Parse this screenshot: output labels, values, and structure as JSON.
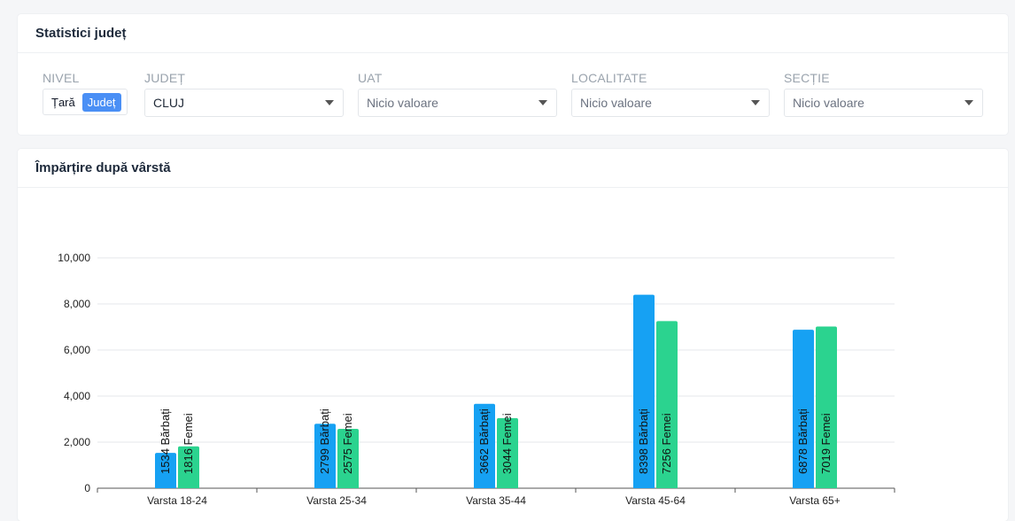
{
  "filters_card": {
    "title": "Statistici județ",
    "nivel": {
      "label": "NIVEL",
      "options": [
        "Țară",
        "Județ"
      ],
      "active_index": 1
    },
    "judet": {
      "label": "JUDEȚ",
      "value": "CLUJ"
    },
    "uat": {
      "label": "UAT",
      "placeholder": "Nicio valoare"
    },
    "localitate": {
      "label": "LOCALITATE",
      "placeholder": "Nicio valoare"
    },
    "sectie": {
      "label": "SECȚIE",
      "placeholder": "Nicio valoare"
    }
  },
  "chart_card": {
    "title": "Împărțire după vârstă"
  },
  "colors": {
    "men": "#16a1f3",
    "women": "#2bd38f",
    "accent": "#4a8ff5"
  },
  "chart_data": {
    "type": "bar",
    "categories": [
      "Varsta 18-24",
      "Varsta 25-34",
      "Varsta 35-44",
      "Varsta 45-64",
      "Varsta 65+"
    ],
    "series": [
      {
        "values": [
          1534,
          2799,
          3662,
          8398,
          6878
        ],
        "labels": [
          "1534 Bărbați",
          "2799 Bărbați",
          "3662 Bărbați",
          "8398 Bărbați",
          "6878 Bărbați"
        ]
      },
      {
        "values": [
          1816,
          2575,
          3044,
          7256,
          7019
        ],
        "labels": [
          "1816 Femei",
          "2575 Femei",
          "3044 Femei",
          "7256 Femei",
          "7019 Femei"
        ]
      }
    ],
    "yticks": [
      "0",
      "2,000",
      "4,000",
      "6,000",
      "8,000",
      "10,000"
    ],
    "ylim": [
      0,
      10000
    ],
    "grid": true
  }
}
